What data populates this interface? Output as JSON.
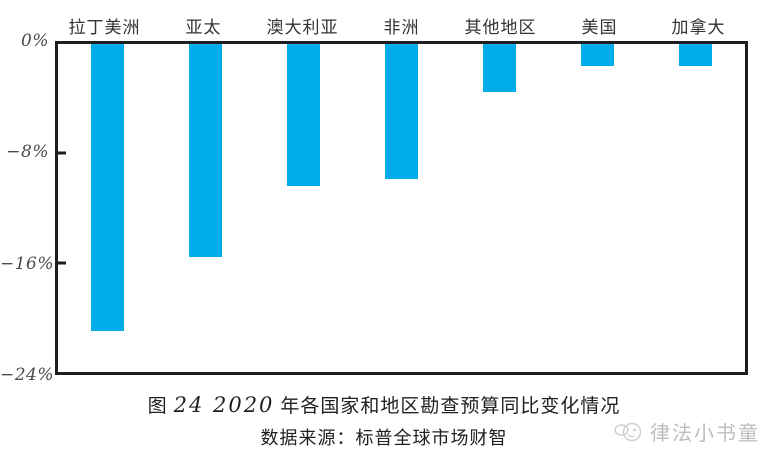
{
  "figure": {
    "caption_prefix": "图",
    "caption_number": "24 2020",
    "caption_suffix": "年各国家和地区勘查预算同比变化情况",
    "source": "数据来源：标普全球市场财智"
  },
  "watermark": {
    "text": "律法小书童",
    "icon": "mascot-chick-icon"
  },
  "colors": {
    "bar": "#00ACE9",
    "axis": "#1E1E21",
    "category_label": "#333333",
    "y_tick_label": "#4A4A4A",
    "caption_text": "#1F1F1F",
    "watermark": "#BDBDBD"
  },
  "chart_data": {
    "type": "bar",
    "title": "图 24 2020 年各国家和地区勘查预算同比变化情况",
    "source": "数据来源：标普全球市场财智",
    "categories": [
      "拉丁美洲",
      "亚太",
      "澳大利亚",
      "非洲",
      "其他地区",
      "美国",
      "加拿大"
    ],
    "values": [
      -21.0,
      -15.6,
      -10.4,
      -9.9,
      -3.5,
      -1.6,
      -1.6
    ],
    "unit": "%",
    "xlabel": "",
    "ylabel": "",
    "ylim": [
      -24,
      0
    ],
    "yticks": [
      {
        "label": "0%",
        "value": 0
      },
      {
        "label": "−8%",
        "value": -8
      },
      {
        "label": "−16%",
        "value": -16
      },
      {
        "label": "−24%",
        "value": -24
      }
    ],
    "grid": false,
    "legend": null,
    "bar_color": "#00ACE9",
    "category_labels_position": "above-plot",
    "bars_hang_from_zero_line": true
  }
}
